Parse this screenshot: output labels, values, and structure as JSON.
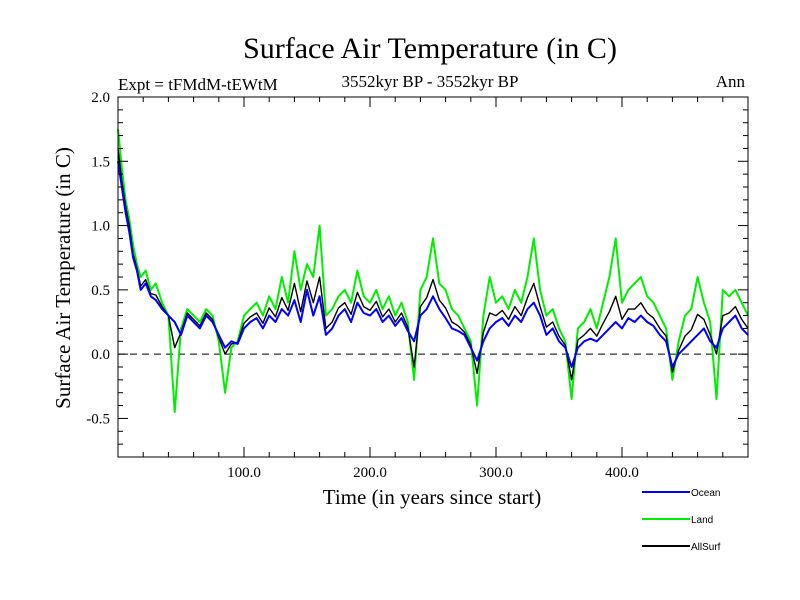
{
  "chart_data": {
    "type": "line",
    "title": "Surface Air Temperature (in C)",
    "subtitle_left": "Expt = tFMdM-tEWtM",
    "subtitle_center": "3552kyr BP - 3552kyr BP",
    "subtitle_right": "Ann",
    "xlabel": "Time (in years since start)",
    "ylabel": "Surface Air Temperature (in C)",
    "xlim": [
      0,
      500
    ],
    "ylim": [
      -0.8,
      2.0
    ],
    "xticks": [
      100,
      200,
      300,
      400
    ],
    "xtick_labels": [
      "100.0",
      "200.0",
      "300.0",
      "400.0"
    ],
    "yticks": [
      -0.5,
      0.0,
      0.5,
      1.0,
      1.5,
      2.0
    ],
    "ytick_labels": [
      "-0.5",
      "0.0",
      "0.5",
      "1.0",
      "1.5",
      "2.0"
    ],
    "zero_line": 0.0,
    "grid": false,
    "legend_position": "bottom-right, below plot",
    "series": [
      {
        "name": "Ocean",
        "color": "#0000ff",
        "x": [
          0,
          3,
          6,
          9,
          12,
          15,
          18,
          22,
          26,
          30,
          35,
          40,
          45,
          50,
          55,
          60,
          65,
          70,
          75,
          80,
          85,
          90,
          95,
          100,
          105,
          110,
          115,
          120,
          125,
          130,
          135,
          140,
          145,
          150,
          155,
          160,
          165,
          170,
          175,
          180,
          185,
          190,
          195,
          200,
          205,
          210,
          215,
          220,
          225,
          230,
          235,
          240,
          245,
          250,
          255,
          260,
          265,
          270,
          275,
          280,
          285,
          290,
          295,
          300,
          305,
          310,
          315,
          320,
          325,
          330,
          335,
          340,
          345,
          350,
          355,
          360,
          365,
          370,
          375,
          380,
          385,
          390,
          395,
          400,
          405,
          410,
          415,
          420,
          425,
          430,
          435,
          440,
          445,
          450,
          455,
          460,
          465,
          470,
          475,
          480,
          485,
          490,
          495,
          500
        ],
        "values": [
          1.5,
          1.3,
          1.1,
          0.95,
          0.75,
          0.65,
          0.5,
          0.55,
          0.45,
          0.42,
          0.35,
          0.3,
          0.25,
          0.15,
          0.3,
          0.25,
          0.2,
          0.3,
          0.25,
          0.15,
          0.05,
          0.1,
          0.08,
          0.2,
          0.25,
          0.28,
          0.2,
          0.3,
          0.25,
          0.35,
          0.3,
          0.42,
          0.25,
          0.5,
          0.3,
          0.45,
          0.15,
          0.2,
          0.3,
          0.35,
          0.25,
          0.4,
          0.32,
          0.3,
          0.35,
          0.25,
          0.3,
          0.22,
          0.28,
          0.18,
          0.1,
          0.3,
          0.35,
          0.45,
          0.35,
          0.28,
          0.2,
          0.18,
          0.15,
          0.05,
          -0.05,
          0.1,
          0.2,
          0.25,
          0.28,
          0.22,
          0.3,
          0.25,
          0.35,
          0.4,
          0.3,
          0.15,
          0.2,
          0.1,
          0.05,
          -0.1,
          0.05,
          0.1,
          0.12,
          0.1,
          0.15,
          0.2,
          0.25,
          0.2,
          0.28,
          0.25,
          0.3,
          0.25,
          0.22,
          0.15,
          0.1,
          -0.1,
          0.0,
          0.05,
          0.1,
          0.15,
          0.2,
          0.1,
          0.05,
          0.2,
          0.25,
          0.3,
          0.2,
          0.15
        ]
      },
      {
        "name": "Land",
        "color": "#00ee00",
        "x": [
          0,
          3,
          6,
          9,
          12,
          15,
          18,
          22,
          26,
          30,
          35,
          40,
          45,
          50,
          55,
          60,
          65,
          70,
          75,
          80,
          85,
          90,
          95,
          100,
          105,
          110,
          115,
          120,
          125,
          130,
          135,
          140,
          145,
          150,
          155,
          160,
          165,
          170,
          175,
          180,
          185,
          190,
          195,
          200,
          205,
          210,
          215,
          220,
          225,
          230,
          235,
          240,
          245,
          250,
          255,
          260,
          265,
          270,
          275,
          280,
          285,
          290,
          295,
          300,
          305,
          310,
          315,
          320,
          325,
          330,
          335,
          340,
          345,
          350,
          355,
          360,
          365,
          370,
          375,
          380,
          385,
          390,
          395,
          400,
          405,
          410,
          415,
          420,
          425,
          430,
          435,
          440,
          445,
          450,
          455,
          460,
          465,
          470,
          475,
          480,
          485,
          490,
          495,
          500
        ],
        "values": [
          1.75,
          1.45,
          1.2,
          1.05,
          0.85,
          0.7,
          0.6,
          0.65,
          0.5,
          0.55,
          0.4,
          0.3,
          -0.45,
          0.2,
          0.35,
          0.3,
          0.25,
          0.35,
          0.3,
          0.1,
          -0.3,
          0.05,
          0.1,
          0.3,
          0.35,
          0.4,
          0.3,
          0.45,
          0.35,
          0.6,
          0.4,
          0.8,
          0.5,
          0.7,
          0.6,
          1.0,
          0.3,
          0.35,
          0.45,
          0.5,
          0.4,
          0.65,
          0.45,
          0.4,
          0.5,
          0.35,
          0.45,
          0.3,
          0.4,
          0.25,
          -0.2,
          0.5,
          0.6,
          0.9,
          0.55,
          0.5,
          0.35,
          0.3,
          0.2,
          0.1,
          -0.4,
          0.3,
          0.6,
          0.4,
          0.45,
          0.35,
          0.5,
          0.4,
          0.6,
          0.9,
          0.5,
          0.3,
          0.35,
          0.2,
          0.1,
          -0.35,
          0.2,
          0.25,
          0.35,
          0.2,
          0.4,
          0.6,
          0.9,
          0.4,
          0.5,
          0.55,
          0.6,
          0.45,
          0.4,
          0.3,
          0.2,
          -0.2,
          0.1,
          0.3,
          0.35,
          0.6,
          0.4,
          0.25,
          -0.35,
          0.5,
          0.45,
          0.5,
          0.4,
          0.3
        ]
      },
      {
        "name": "AllSurf",
        "color": "#000000",
        "x": [
          0,
          3,
          6,
          9,
          12,
          15,
          18,
          22,
          26,
          30,
          35,
          40,
          45,
          50,
          55,
          60,
          65,
          70,
          75,
          80,
          85,
          90,
          95,
          100,
          105,
          110,
          115,
          120,
          125,
          130,
          135,
          140,
          145,
          150,
          155,
          160,
          165,
          170,
          175,
          180,
          185,
          190,
          195,
          200,
          205,
          210,
          215,
          220,
          225,
          230,
          235,
          240,
          245,
          250,
          255,
          260,
          265,
          270,
          275,
          280,
          285,
          290,
          295,
          300,
          305,
          310,
          315,
          320,
          325,
          330,
          335,
          340,
          345,
          350,
          355,
          360,
          365,
          370,
          375,
          380,
          385,
          390,
          395,
          400,
          405,
          410,
          415,
          420,
          425,
          430,
          435,
          440,
          445,
          450,
          455,
          460,
          465,
          470,
          475,
          480,
          485,
          490,
          495,
          500
        ],
        "values": [
          1.6,
          1.35,
          1.15,
          1.0,
          0.78,
          0.67,
          0.53,
          0.58,
          0.47,
          0.46,
          0.37,
          0.3,
          0.05,
          0.17,
          0.32,
          0.27,
          0.22,
          0.32,
          0.27,
          0.13,
          0.0,
          0.08,
          0.09,
          0.24,
          0.29,
          0.32,
          0.24,
          0.36,
          0.29,
          0.44,
          0.34,
          0.55,
          0.33,
          0.57,
          0.4,
          0.6,
          0.2,
          0.25,
          0.36,
          0.4,
          0.31,
          0.48,
          0.37,
          0.34,
          0.41,
          0.29,
          0.35,
          0.25,
          0.32,
          0.21,
          -0.1,
          0.37,
          0.44,
          0.58,
          0.42,
          0.36,
          0.25,
          0.22,
          0.17,
          0.07,
          -0.15,
          0.17,
          0.32,
          0.3,
          0.34,
          0.27,
          0.37,
          0.3,
          0.44,
          0.55,
          0.37,
          0.21,
          0.25,
          0.14,
          0.07,
          -0.2,
          0.11,
          0.15,
          0.2,
          0.14,
          0.24,
          0.33,
          0.45,
          0.27,
          0.35,
          0.35,
          0.4,
          0.32,
          0.28,
          0.2,
          0.14,
          -0.14,
          0.03,
          0.14,
          0.19,
          0.31,
          0.27,
          0.15,
          0.0,
          0.3,
          0.32,
          0.37,
          0.27,
          0.2
        ]
      }
    ]
  }
}
